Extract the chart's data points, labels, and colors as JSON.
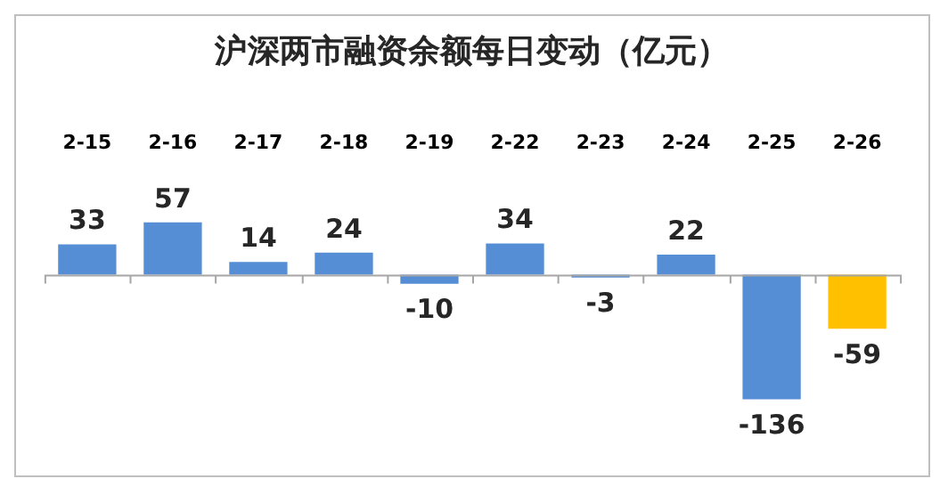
{
  "chart_data": {
    "type": "bar",
    "title": "沪深两市融资余额每日变动（亿元）",
    "categories": [
      "2-15",
      "2-16",
      "2-17",
      "2-18",
      "2-19",
      "2-22",
      "2-23",
      "2-24",
      "2-25",
      "2-26"
    ],
    "values": [
      33,
      57,
      14,
      24,
      -10,
      34,
      -3,
      22,
      -136,
      -59
    ],
    "colors": [
      "#558ed5",
      "#558ed5",
      "#558ed5",
      "#558ed5",
      "#558ed5",
      "#558ed5",
      "#558ed5",
      "#558ed5",
      "#558ed5",
      "#ffc000"
    ],
    "data_labels": true,
    "grid": false,
    "legend": false
  }
}
